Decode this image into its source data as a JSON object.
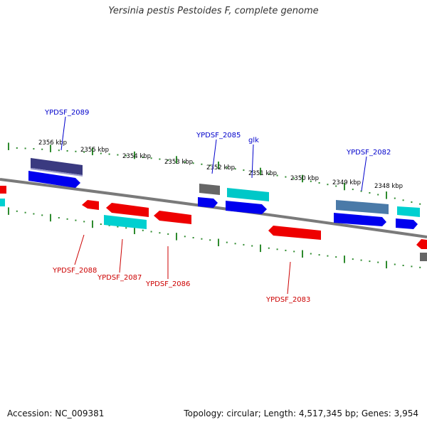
{
  "title": "Yersinia pestis Pestoides F, complete genome",
  "footer": {
    "accession": "Accession: NC_009381",
    "topology": "Topology: circular; Length: 4,517,345 bp; Genes: 3,954"
  },
  "colors": {
    "backbone": "#7a7a7a",
    "forward_label": "#0000cc",
    "reverse_label": "#cc0000",
    "tick": "#2e8b2e",
    "gene_blue": "#0000ee",
    "gene_red": "#ee0000",
    "gene_cyan": "#00d0d0",
    "gene_gray": "#666666",
    "gene_navy": "#3a3a80",
    "gene_steel": "#4a7aa8"
  },
  "scale_labels": [
    "2356 kbp",
    "2355 kbp",
    "2354 kbp",
    "2353 kbp",
    "2352 kbp",
    "2351 kbp",
    "2350 kbp",
    "2349 kbp",
    "2348 kbp"
  ],
  "gene_labels": {
    "forward": [
      "YPDSF_2089",
      "YPDSF_2085",
      "glk",
      "YPDSF_2082"
    ],
    "reverse": [
      "YPDSF_2088",
      "YPDSF_2087",
      "YPDSF_2086",
      "YPDSF_2083"
    ]
  }
}
